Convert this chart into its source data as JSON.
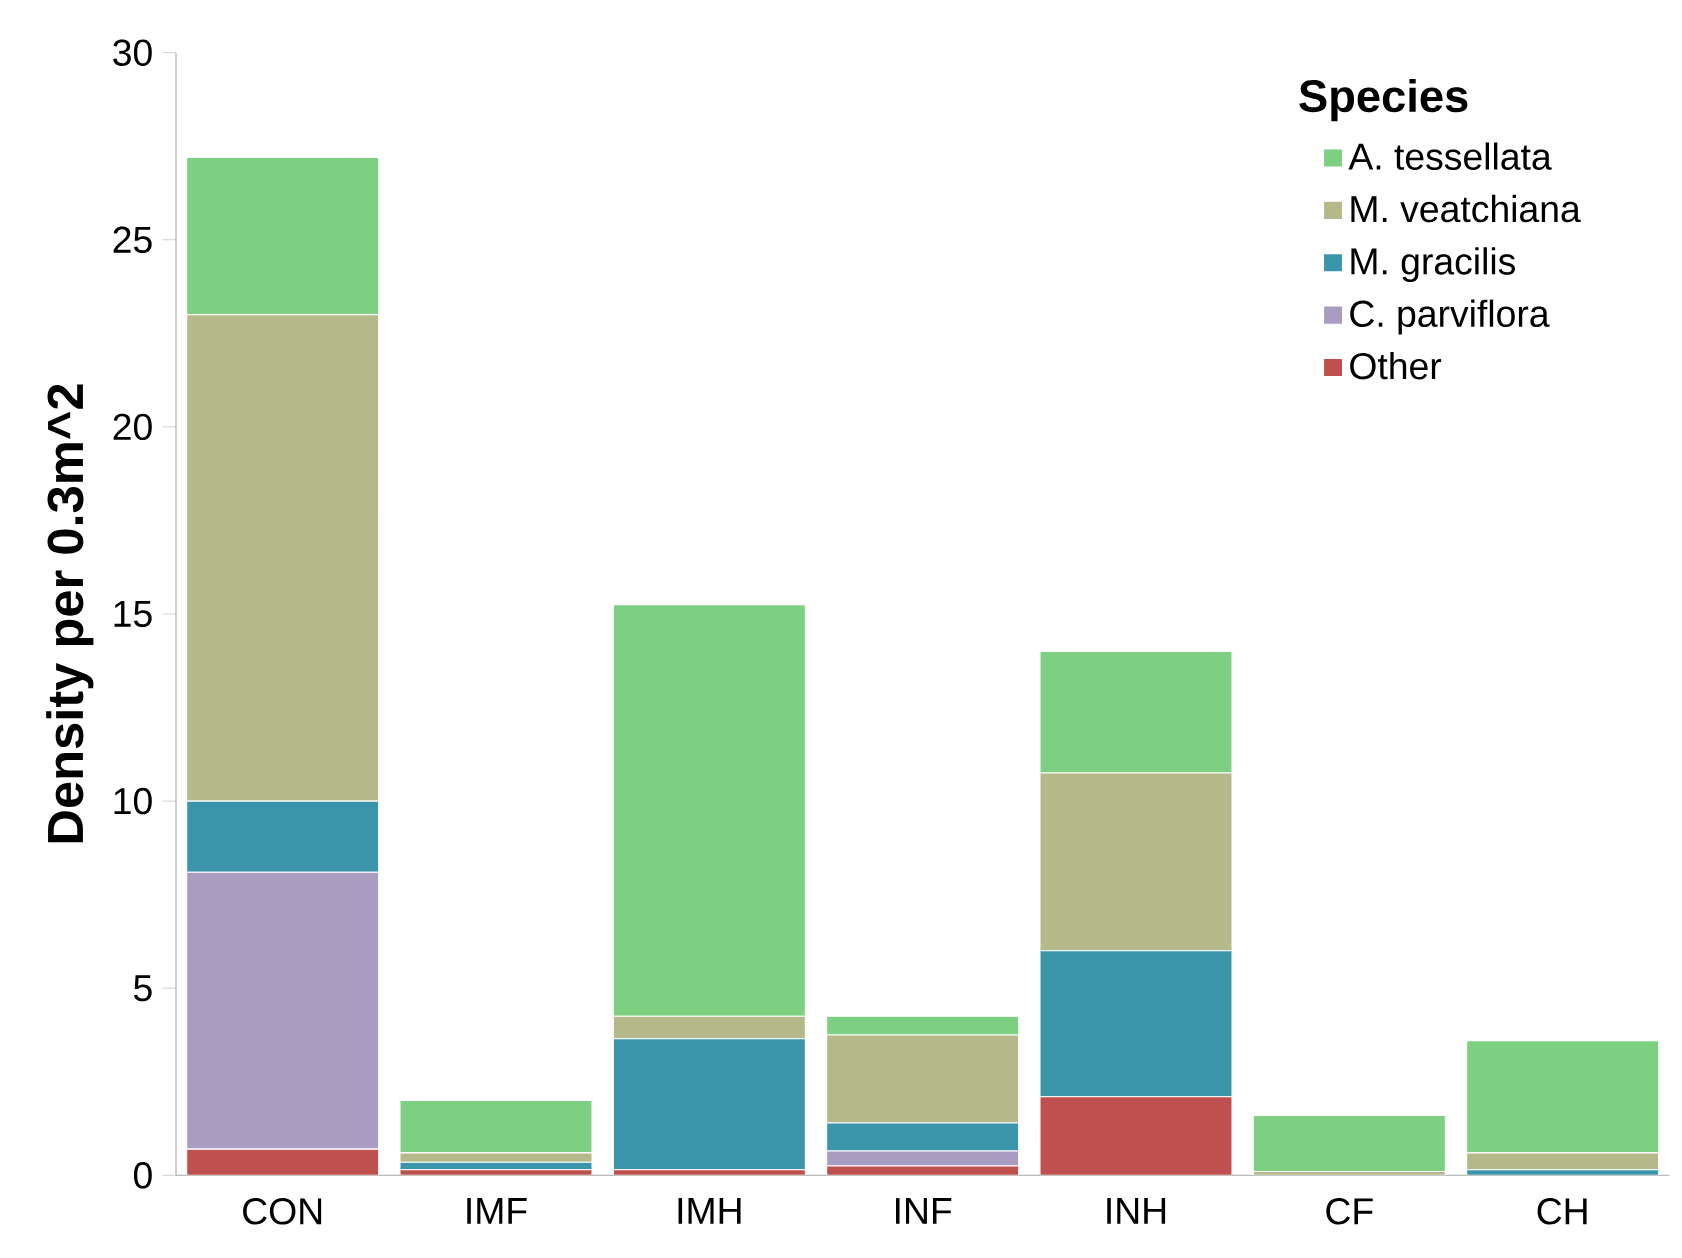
{
  "chart_data": {
    "type": "bar",
    "stacked": true,
    "ylabel": "Density per 0.3m^2",
    "legend_title": "Species",
    "legend": "top right",
    "categories": [
      "CON",
      "IMF",
      "IMH",
      "INF",
      "INH",
      "CF",
      "CH"
    ],
    "ylim": [
      0,
      30
    ],
    "yticks": [
      0,
      5,
      10,
      15,
      20,
      25,
      30
    ],
    "series": [
      {
        "name": "Other",
        "color": "#c0504d",
        "values": [
          0.7,
          0.15,
          0.15,
          0.25,
          2.1,
          0,
          0
        ]
      },
      {
        "name": "C. parviflora",
        "color": "#a89cc0",
        "values": [
          7.4,
          0,
          0,
          0.4,
          0,
          0,
          0
        ]
      },
      {
        "name": "M. gracilis",
        "color": "#3a95ab",
        "values": [
          1.9,
          0.2,
          3.5,
          0.75,
          3.9,
          0,
          0.15
        ]
      },
      {
        "name": "M. veatchiana",
        "color": "#b5b98a",
        "values": [
          13.0,
          0.25,
          0.6,
          2.35,
          4.75,
          0.1,
          0.45
        ]
      },
      {
        "name": "A. tessellata",
        "color": "#7dcf82",
        "values": [
          4.2,
          1.4,
          11.0,
          0.5,
          3.25,
          1.5,
          3.0
        ]
      }
    ]
  }
}
